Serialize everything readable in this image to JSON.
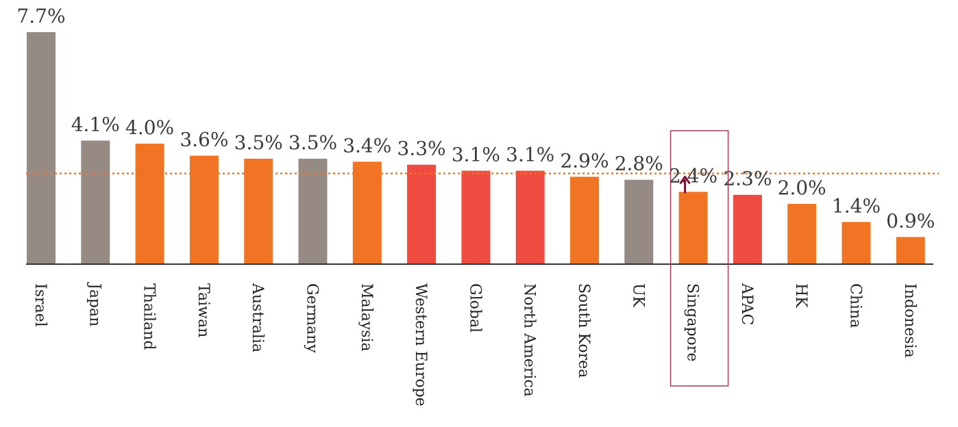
{
  "chart_data": {
    "type": "bar",
    "categories": [
      "Israel",
      "Japan",
      "Thailand",
      "Taiwan",
      "Australia",
      "Germany",
      "Malaysia",
      "Western Europe",
      "Global",
      "North America",
      "South Korea",
      "UK",
      "Singapore",
      "APAC",
      "HK",
      "China",
      "Indonesia"
    ],
    "values": [
      7.7,
      4.1,
      4.0,
      3.6,
      3.5,
      3.5,
      3.4,
      3.3,
      3.1,
      3.1,
      2.9,
      2.8,
      2.4,
      2.3,
      2.0,
      1.4,
      0.9
    ],
    "value_labels": [
      "7.7%",
      "4.1%",
      "4.0%",
      "3.6%",
      "3.5%",
      "3.5%",
      "3.4%",
      "3.3%",
      "3.1%",
      "3.1%",
      "2.9%",
      "2.8%",
      "2.4%",
      "2.3%",
      "2.0%",
      "1.4%",
      "0.9%"
    ],
    "bar_colors": [
      "#958b84",
      "#958b84",
      "#f07423",
      "#f07423",
      "#f07423",
      "#958b84",
      "#f07423",
      "#ee4b41",
      "#ee4b41",
      "#ee4b41",
      "#f07423",
      "#958b84",
      "#f07423",
      "#ee4b41",
      "#f07423",
      "#f07423",
      "#f07423"
    ],
    "reference_line": {
      "value": 3.1,
      "color": "#f07423",
      "style": "dotted"
    },
    "highlight": {
      "category": "Singapore",
      "box_color": "#9e3c5a",
      "arrow_color": "#7a0f2e",
      "arrow_direction": "up"
    },
    "title": "",
    "xlabel": "",
    "ylabel": "",
    "ylim": [
      0,
      7.7
    ],
    "grid": false,
    "legend": "none"
  }
}
